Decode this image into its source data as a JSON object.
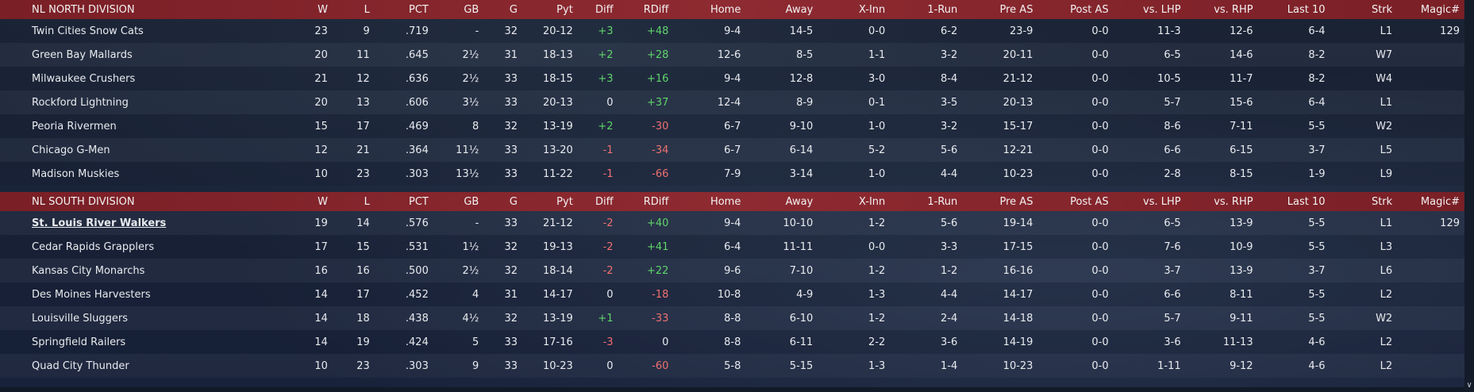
{
  "columns": [
    "W",
    "L",
    "PCT",
    "GB",
    "G",
    "Pyt",
    "Diff",
    "RDiff",
    "Home",
    "Away",
    "X-Inn",
    "1-Run",
    "Pre AS",
    "Post AS",
    "vs. LHP",
    "vs. RHP",
    "Last 10",
    "Strk",
    "Magic#"
  ],
  "divisions": [
    {
      "name": "NL NORTH DIVISION",
      "teams": [
        {
          "team": "Twin Cities Snow Cats",
          "W": "23",
          "L": "9",
          "PCT": ".719",
          "GB": "-",
          "G": "32",
          "Pyt": "20-12",
          "Diff": "+3",
          "RDiff": "+48",
          "Home": "9-4",
          "Away": "14-5",
          "XInn": "0-0",
          "OneRun": "6-2",
          "PreAS": "23-9",
          "PostAS": "0-0",
          "vsLHP": "11-3",
          "vsRHP": "12-6",
          "Last10": "6-4",
          "Strk": "L1",
          "Magic": "129"
        },
        {
          "team": "Green Bay  Mallards",
          "W": "20",
          "L": "11",
          "PCT": ".645",
          "GB": "2½",
          "G": "31",
          "Pyt": "18-13",
          "Diff": "+2",
          "RDiff": "+28",
          "Home": "12-6",
          "Away": "8-5",
          "XInn": "1-1",
          "OneRun": "3-2",
          "PreAS": "20-11",
          "PostAS": "0-0",
          "vsLHP": "6-5",
          "vsRHP": "14-6",
          "Last10": "8-2",
          "Strk": "W7",
          "Magic": ""
        },
        {
          "team": "Milwaukee Crushers",
          "W": "21",
          "L": "12",
          "PCT": ".636",
          "GB": "2½",
          "G": "33",
          "Pyt": "18-15",
          "Diff": "+3",
          "RDiff": "+16",
          "Home": "9-4",
          "Away": "12-8",
          "XInn": "3-0",
          "OneRun": "8-4",
          "PreAS": "21-12",
          "PostAS": "0-0",
          "vsLHP": "10-5",
          "vsRHP": "11-7",
          "Last10": "8-2",
          "Strk": "W4",
          "Magic": ""
        },
        {
          "team": "Rockford Lightning",
          "W": "20",
          "L": "13",
          "PCT": ".606",
          "GB": "3½",
          "G": "33",
          "Pyt": "20-13",
          "Diff": "0",
          "RDiff": "+37",
          "Home": "12-4",
          "Away": "8-9",
          "XInn": "0-1",
          "OneRun": "3-5",
          "PreAS": "20-13",
          "PostAS": "0-0",
          "vsLHP": "5-7",
          "vsRHP": "15-6",
          "Last10": "6-4",
          "Strk": "L1",
          "Magic": ""
        },
        {
          "team": "Peoria Rivermen",
          "W": "15",
          "L": "17",
          "PCT": ".469",
          "GB": "8",
          "G": "32",
          "Pyt": "13-19",
          "Diff": "+2",
          "RDiff": "-30",
          "Home": "6-7",
          "Away": "9-10",
          "XInn": "1-0",
          "OneRun": "3-2",
          "PreAS": "15-17",
          "PostAS": "0-0",
          "vsLHP": "8-6",
          "vsRHP": "7-11",
          "Last10": "5-5",
          "Strk": "W2",
          "Magic": ""
        },
        {
          "team": "Chicago G-Men",
          "W": "12",
          "L": "21",
          "PCT": ".364",
          "GB": "11½",
          "G": "33",
          "Pyt": "13-20",
          "Diff": "-1",
          "RDiff": "-34",
          "Home": "6-7",
          "Away": "6-14",
          "XInn": "5-2",
          "OneRun": "5-6",
          "PreAS": "12-21",
          "PostAS": "0-0",
          "vsLHP": "6-6",
          "vsRHP": "6-15",
          "Last10": "3-7",
          "Strk": "L5",
          "Magic": ""
        },
        {
          "team": "Madison Muskies",
          "W": "10",
          "L": "23",
          "PCT": ".303",
          "GB": "13½",
          "G": "33",
          "Pyt": "11-22",
          "Diff": "-1",
          "RDiff": "-66",
          "Home": "7-9",
          "Away": "3-14",
          "XInn": "1-0",
          "OneRun": "4-4",
          "PreAS": "10-23",
          "PostAS": "0-0",
          "vsLHP": "2-8",
          "vsRHP": "8-15",
          "Last10": "1-9",
          "Strk": "L9",
          "Magic": ""
        }
      ]
    },
    {
      "name": "NL SOUTH DIVISION",
      "teams": [
        {
          "team": "St. Louis River Walkers",
          "W": "19",
          "L": "14",
          "PCT": ".576",
          "GB": "-",
          "G": "33",
          "Pyt": "21-12",
          "Diff": "-2",
          "RDiff": "+40",
          "Home": "9-4",
          "Away": "10-10",
          "XInn": "1-2",
          "OneRun": "5-6",
          "PreAS": "19-14",
          "PostAS": "0-0",
          "vsLHP": "6-5",
          "vsRHP": "13-9",
          "Last10": "5-5",
          "Strk": "L1",
          "Magic": "129"
        },
        {
          "team": "Cedar Rapids Grapplers",
          "W": "17",
          "L": "15",
          "PCT": ".531",
          "GB": "1½",
          "G": "32",
          "Pyt": "19-13",
          "Diff": "-2",
          "RDiff": "+41",
          "Home": "6-4",
          "Away": "11-11",
          "XInn": "0-0",
          "OneRun": "3-3",
          "PreAS": "17-15",
          "PostAS": "0-0",
          "vsLHP": "7-6",
          "vsRHP": "10-9",
          "Last10": "5-5",
          "Strk": "L3",
          "Magic": ""
        },
        {
          "team": "Kansas City Monarchs",
          "W": "16",
          "L": "16",
          "PCT": ".500",
          "GB": "2½",
          "G": "32",
          "Pyt": "18-14",
          "Diff": "-2",
          "RDiff": "+22",
          "Home": "9-6",
          "Away": "7-10",
          "XInn": "1-2",
          "OneRun": "1-2",
          "PreAS": "16-16",
          "PostAS": "0-0",
          "vsLHP": "3-7",
          "vsRHP": "13-9",
          "Last10": "3-7",
          "Strk": "L6",
          "Magic": ""
        },
        {
          "team": "Des Moines Harvesters",
          "W": "14",
          "L": "17",
          "PCT": ".452",
          "GB": "4",
          "G": "31",
          "Pyt": "14-17",
          "Diff": "0",
          "RDiff": "-18",
          "Home": "10-8",
          "Away": "4-9",
          "XInn": "1-3",
          "OneRun": "4-4",
          "PreAS": "14-17",
          "PostAS": "0-0",
          "vsLHP": "6-6",
          "vsRHP": "8-11",
          "Last10": "5-5",
          "Strk": "L2",
          "Magic": ""
        },
        {
          "team": "Louisville Sluggers",
          "W": "14",
          "L": "18",
          "PCT": ".438",
          "GB": "4½",
          "G": "32",
          "Pyt": "13-19",
          "Diff": "+1",
          "RDiff": "-33",
          "Home": "8-8",
          "Away": "6-10",
          "XInn": "1-2",
          "OneRun": "2-4",
          "PreAS": "14-18",
          "PostAS": "0-0",
          "vsLHP": "5-7",
          "vsRHP": "9-11",
          "Last10": "5-5",
          "Strk": "W2",
          "Magic": ""
        },
        {
          "team": "Springfield Railers",
          "W": "14",
          "L": "19",
          "PCT": ".424",
          "GB": "5",
          "G": "33",
          "Pyt": "17-16",
          "Diff": "-3",
          "RDiff": "0",
          "Home": "8-8",
          "Away": "6-11",
          "XInn": "2-2",
          "OneRun": "3-6",
          "PreAS": "14-19",
          "PostAS": "0-0",
          "vsLHP": "3-6",
          "vsRHP": "11-13",
          "Last10": "4-6",
          "Strk": "L2",
          "Magic": ""
        },
        {
          "team": "Quad City Thunder",
          "W": "10",
          "L": "23",
          "PCT": ".303",
          "GB": "9",
          "G": "33",
          "Pyt": "10-23",
          "Diff": "0",
          "RDiff": "-60",
          "Home": "5-8",
          "Away": "5-15",
          "XInn": "1-3",
          "OneRun": "1-4",
          "PreAS": "10-23",
          "PostAS": "0-0",
          "vsLHP": "1-11",
          "vsRHP": "9-12",
          "Last10": "4-6",
          "Strk": "L2",
          "Magic": ""
        }
      ]
    }
  ],
  "highlighted_team": "St. Louis River Walkers",
  "colors": {
    "header_bg": "#8e2a31",
    "positive": "#5fd46a",
    "negative": "#f07070",
    "background": "#1a2436"
  },
  "scrollbar": {
    "down_arrow_icon": "chevron-down-icon",
    "glyph": "∨"
  }
}
